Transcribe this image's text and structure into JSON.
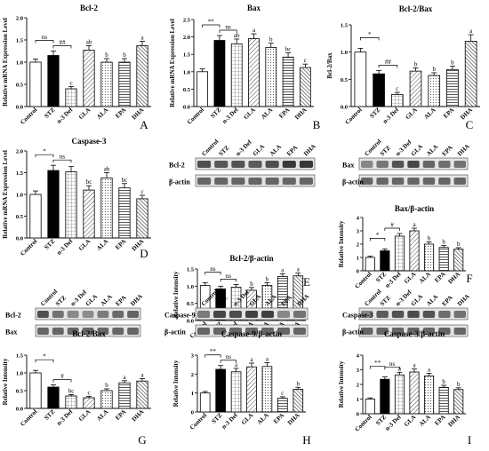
{
  "panel_letters": [
    "A",
    "B",
    "C",
    "D",
    "E",
    "F",
    "G",
    "H",
    "I"
  ],
  "chart_data": [
    {
      "id": "A",
      "type": "bar",
      "title": "Bcl-2",
      "ylabel": "Relative mRNA Expression Level",
      "categories": [
        "Control",
        "STZ",
        "n-3 Def",
        "GLA",
        "ALA",
        "EPA",
        "DHA"
      ],
      "values": [
        1.0,
        1.15,
        0.4,
        1.27,
        1.0,
        1.0,
        1.37
      ],
      "errors": [
        0.07,
        0.1,
        0.05,
        0.1,
        0.08,
        0.08,
        0.1
      ],
      "ylim": [
        0,
        2.0
      ],
      "ticks": [
        0,
        0.5,
        1.0,
        1.5,
        2.0
      ],
      "tick_labels": [
        "0.0",
        "0.5",
        "1.0",
        "1.5",
        "2.0"
      ],
      "letters": [
        "",
        "",
        "c",
        "ab",
        "b",
        "b",
        "a"
      ],
      "brackets": [
        {
          "from": 0,
          "to": 1,
          "label": "ns"
        },
        {
          "from": 1,
          "to": 2,
          "label": "##"
        }
      ]
    },
    {
      "id": "B",
      "type": "bar",
      "title": "Bax",
      "ylabel": "Relative mRNA Expression Level",
      "categories": [
        "Control",
        "STZ",
        "n-3 Def",
        "GLA",
        "ALA",
        "EPA",
        "DHA"
      ],
      "values": [
        1.0,
        1.9,
        1.8,
        1.95,
        1.7,
        1.42,
        1.12
      ],
      "errors": [
        0.08,
        0.14,
        0.14,
        0.14,
        0.12,
        0.12,
        0.1
      ],
      "ylim": [
        0,
        2.5
      ],
      "ticks": [
        0,
        0.5,
        1.0,
        1.5,
        2.0,
        2.5
      ],
      "tick_labels": [
        "0.0",
        "0.5",
        "1.0",
        "1.5",
        "2.0",
        "2.5"
      ],
      "letters": [
        "",
        "",
        "ab",
        "a",
        "b",
        "bc",
        "c"
      ],
      "brackets": [
        {
          "from": 0,
          "to": 1,
          "label": "**"
        },
        {
          "from": 1,
          "to": 2,
          "label": "ns"
        }
      ]
    },
    {
      "id": "C",
      "type": "bar",
      "title": "Bcl-2/Bax",
      "ylabel": "Bcl-2/Bax",
      "categories": [
        "Control",
        "STZ",
        "n-3 Def",
        "GLA",
        "ALA",
        "EPA",
        "DHA"
      ],
      "values": [
        1.0,
        0.6,
        0.22,
        0.65,
        0.57,
        0.68,
        1.2
      ],
      "errors": [
        0.07,
        0.06,
        0.04,
        0.06,
        0.05,
        0.06,
        0.12
      ],
      "ylim": [
        0,
        1.5
      ],
      "ticks": [
        0,
        0.5,
        1.0,
        1.5
      ],
      "tick_labels": [
        "0.0",
        "0.5",
        "1.0",
        "1.5"
      ],
      "letters": [
        "",
        "",
        "c",
        "b",
        "b",
        "b",
        "a"
      ],
      "brackets": [
        {
          "from": 0,
          "to": 1,
          "label": "*"
        },
        {
          "from": 1,
          "to": 2,
          "label": "##"
        }
      ]
    },
    {
      "id": "D",
      "type": "bar",
      "title": "Caspase-3",
      "ylabel": "Relative mRNA Expression Level",
      "categories": [
        "Control",
        "STZ",
        "n-3 Def",
        "GLA",
        "ALA",
        "EPA",
        "DHA"
      ],
      "values": [
        1.0,
        1.55,
        1.52,
        1.1,
        1.38,
        1.15,
        0.9
      ],
      "errors": [
        0.08,
        0.12,
        0.12,
        0.1,
        0.12,
        0.1,
        0.08
      ],
      "ylim": [
        0,
        2.0
      ],
      "ticks": [
        0,
        0.5,
        1.0,
        1.5,
        2.0
      ],
      "tick_labels": [
        "0.0",
        "0.5",
        "1.0",
        "1.5",
        "2.0"
      ],
      "letters": [
        "",
        "",
        "",
        "bc",
        "ab",
        "bc",
        "c"
      ],
      "brackets": [
        {
          "from": 0,
          "to": 1,
          "label": "*"
        },
        {
          "from": 1,
          "to": 2,
          "label": "ns"
        }
      ]
    },
    {
      "id": "E",
      "type": "bar",
      "title": "Bcl-2/β-actin",
      "ylabel": "Relative Intensity",
      "blot_rows": [
        "Bcl-2",
        "β-actin"
      ],
      "categories": [
        "Control",
        "STZ",
        "n-3 Def",
        "GLA",
        "ALA",
        "EPA",
        "DHA"
      ],
      "values": [
        1.02,
        0.92,
        0.97,
        0.88,
        1.02,
        1.28,
        1.3
      ],
      "errors": [
        0.08,
        0.08,
        0.08,
        0.08,
        0.08,
        0.08,
        0.08
      ],
      "ylim": [
        0,
        1.5
      ],
      "ticks": [
        0,
        0.5,
        1.0,
        1.5
      ],
      "tick_labels": [
        "0.0",
        "0.5",
        "1.0",
        "1.5"
      ],
      "letters": [
        "",
        "",
        "",
        "b",
        "b",
        "a",
        "a"
      ],
      "brackets": [
        {
          "from": 0,
          "to": 1,
          "label": "ns"
        },
        {
          "from": 1,
          "to": 2,
          "label": "ns"
        }
      ]
    },
    {
      "id": "F",
      "type": "bar",
      "title": "Bax/β-actin",
      "ylabel": "Relative Intensity",
      "blot_rows": [
        "Bax",
        "β-actin"
      ],
      "categories": [
        "Control",
        "STZ",
        "n-3 Def",
        "GLA",
        "ALA",
        "EPA",
        "DHA"
      ],
      "values": [
        1.0,
        1.5,
        2.6,
        3.0,
        2.0,
        1.75,
        1.62
      ],
      "errors": [
        0.1,
        0.14,
        0.2,
        0.2,
        0.16,
        0.14,
        0.12
      ],
      "ylim": [
        0,
        4
      ],
      "ticks": [
        0,
        1,
        2,
        3,
        4
      ],
      "tick_labels": [
        "0",
        "1",
        "2",
        "3",
        "4"
      ],
      "letters": [
        "",
        "",
        "",
        "a",
        "b",
        "b",
        "b"
      ],
      "brackets": [
        {
          "from": 0,
          "to": 1,
          "label": "*"
        },
        {
          "from": 1,
          "to": 2,
          "label": "#"
        }
      ]
    },
    {
      "id": "G",
      "type": "bar",
      "title": "Bcl-2/Bax",
      "ylabel": "Relative Intensity",
      "blot_rows": [
        "Bcl-2",
        "Bax"
      ],
      "categories": [
        "Control",
        "STZ",
        "n-3 Def",
        "GLA",
        "ALA",
        "EPA",
        "DHA"
      ],
      "values": [
        1.0,
        0.6,
        0.35,
        0.3,
        0.5,
        0.72,
        0.77
      ],
      "errors": [
        0.07,
        0.06,
        0.04,
        0.04,
        0.05,
        0.06,
        0.07
      ],
      "ylim": [
        0,
        1.5
      ],
      "ticks": [
        0,
        0.5,
        1.0,
        1.5
      ],
      "tick_labels": [
        "0.0",
        "0.5",
        "1.0",
        "1.5"
      ],
      "letters": [
        "",
        "",
        "bc",
        "c",
        "b",
        "a",
        "a"
      ],
      "brackets": [
        {
          "from": 0,
          "to": 1,
          "label": "*"
        },
        {
          "from": 1,
          "to": 2,
          "label": "#"
        }
      ]
    },
    {
      "id": "H",
      "type": "bar",
      "title": "Caspase-9/β-actin",
      "ylabel": "Relative Intensity",
      "blot_rows": [
        "Caspase-9",
        "β-actin"
      ],
      "categories": [
        "Control",
        "STZ",
        "n-3 Def",
        "GLA",
        "ALA",
        "EPA",
        "DHA"
      ],
      "values": [
        1.0,
        2.25,
        2.12,
        2.38,
        2.4,
        0.72,
        1.2
      ],
      "errors": [
        0.08,
        0.2,
        0.18,
        0.2,
        0.2,
        0.08,
        0.1
      ],
      "ylim": [
        0,
        3
      ],
      "ticks": [
        0,
        1,
        2,
        3
      ],
      "tick_labels": [
        "0",
        "1",
        "2",
        "3"
      ],
      "letters": [
        "",
        "",
        "a",
        "a",
        "a",
        "c",
        "b"
      ],
      "brackets": [
        {
          "from": 0,
          "to": 1,
          "label": "**"
        },
        {
          "from": 1,
          "to": 2,
          "label": "ns"
        }
      ]
    },
    {
      "id": "I",
      "type": "bar",
      "title": "Caspase-3/β-actin",
      "ylabel": "Relative Intensity",
      "blot_rows": [
        "Caspase-3",
        "β-actin"
      ],
      "categories": [
        "Control",
        "STZ",
        "n-3 Def",
        "GLA",
        "ALA",
        "EPA",
        "DHA"
      ],
      "values": [
        1.0,
        2.35,
        2.65,
        2.85,
        2.58,
        1.8,
        1.65
      ],
      "errors": [
        0.08,
        0.16,
        0.18,
        0.2,
        0.18,
        0.14,
        0.12
      ],
      "ylim": [
        0,
        4
      ],
      "ticks": [
        0,
        1,
        2,
        3,
        4
      ],
      "tick_labels": [
        "0",
        "1",
        "2",
        "3",
        "4"
      ],
      "letters": [
        "",
        "",
        "a",
        "a",
        "a",
        "b",
        "b"
      ],
      "brackets": [
        {
          "from": 0,
          "to": 1,
          "label": "**"
        },
        {
          "from": 1,
          "to": 2,
          "label": "ns"
        }
      ]
    }
  ]
}
